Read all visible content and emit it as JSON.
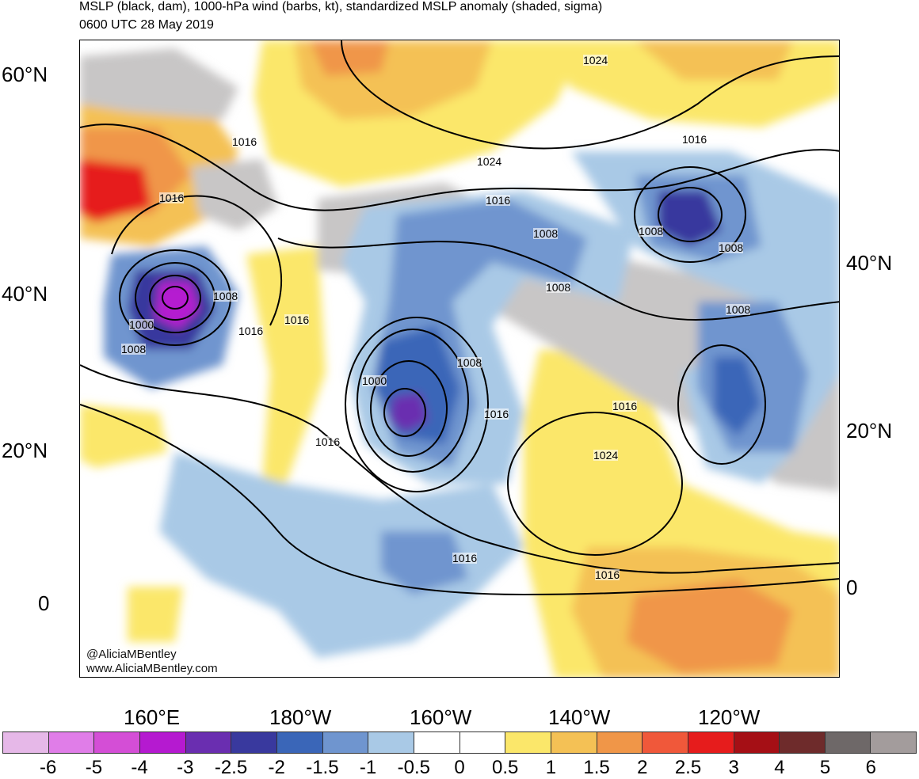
{
  "header": {
    "title": "MSLP (black, dam), 1000-hPa wind (barbs, kt), standardized MSLP anomaly (shaded, sigma)",
    "valid_time": "0600 UTC 28 May 2019"
  },
  "map": {
    "left_lat_labels": [
      "60°N",
      "40°N",
      "20°N",
      "0"
    ],
    "right_lat_labels": [
      "40°N",
      "20°N",
      "0"
    ],
    "lon_labels": [
      "160°E",
      "180°W",
      "160°W",
      "140°W",
      "120°W"
    ],
    "isobar_labels": [
      "1016",
      "1016",
      "1024",
      "1016",
      "1024",
      "1016",
      "1008",
      "1008",
      "1008",
      "1008",
      "1008",
      "1000",
      "1008",
      "1016",
      "1016",
      "1000",
      "1008",
      "1016",
      "1016",
      "1016",
      "1016",
      "1024",
      "1016",
      "1016",
      "1008"
    ],
    "credit_handle": "@AliciaMBentley",
    "credit_url": "www.AliciaMBentley.com"
  },
  "colorbar": {
    "colors": [
      "#e6b8e8",
      "#e07de8",
      "#d44ed6",
      "#b51ad0",
      "#6a2eb0",
      "#39399e",
      "#3a66b8",
      "#6f95cf",
      "#a9c9e6",
      "#ffffff",
      "#ffffff",
      "#fbe76a",
      "#f4c155",
      "#f09648",
      "#f0583a",
      "#e61c1c",
      "#a50f15",
      "#6e2b2b",
      "#6e6868",
      "#a39c9c"
    ],
    "labels": [
      "-6",
      "-5",
      "-4",
      "-3",
      "-2.5",
      "-2",
      "-1.5",
      "-1",
      "-0.5",
      "0",
      "0.5",
      "1",
      "1.5",
      "2",
      "2.5",
      "3",
      "4",
      "5",
      "6"
    ]
  }
}
